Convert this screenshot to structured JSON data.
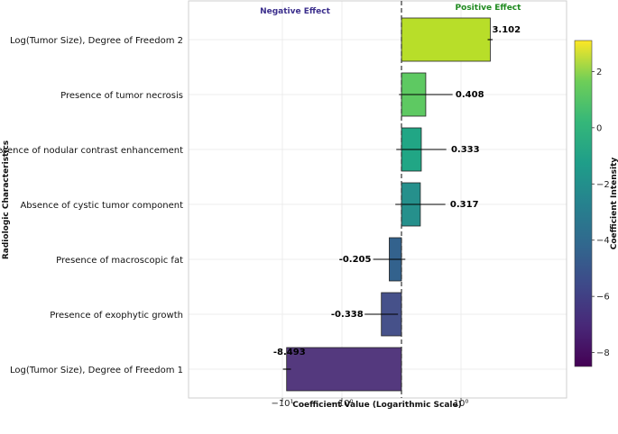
{
  "chart_data": {
    "type": "bar",
    "orientation": "horizontal",
    "x_scale": "symlog",
    "categories": [
      "Log(Tumor Size), Degree of Freedom 2",
      "Presence of tumor necrosis",
      "Presence of nodular contrast enhancement",
      "Absence of cystic tumor component",
      "Presence of macroscopic fat",
      "Presence of exophytic growth",
      "Log(Tumor Size), Degree of Freedom 1"
    ],
    "values": [
      3.102,
      0.408,
      0.333,
      0.317,
      -0.205,
      -0.338,
      -8.493
    ],
    "value_labels": [
      "3.102",
      "0.408",
      "0.333",
      "0.317",
      "-0.205",
      "-0.338",
      "-8.493"
    ],
    "error_bars": [
      0.3,
      0.45,
      0.42,
      0.42,
      0.27,
      0.28,
      1.3
    ],
    "bar_colors": [
      "#b8de29",
      "#5ec962",
      "#21a685",
      "#26908c",
      "#33628d",
      "#46518a",
      "#54397e"
    ],
    "xlabel": "Coefficient Value (Logarithmic Scale)",
    "ylabel": "Radiologic Characteristics",
    "x_ticks": [
      -10,
      -1,
      1
    ],
    "x_tick_labels": [
      "−10¹",
      "−10⁰",
      "10⁰"
    ],
    "annotations": {
      "negative": "Negative Effect",
      "positive": "Positive Effect"
    },
    "zero_line": true,
    "grid": true,
    "colorbar": {
      "label": "Coefficient Intensity",
      "min": -8.493,
      "max": 3.102,
      "ticks": [
        -8,
        -6,
        -4,
        -2,
        0,
        2
      ],
      "tick_labels": [
        "−8",
        "−6",
        "−4",
        "−2",
        "0",
        "2"
      ]
    }
  }
}
